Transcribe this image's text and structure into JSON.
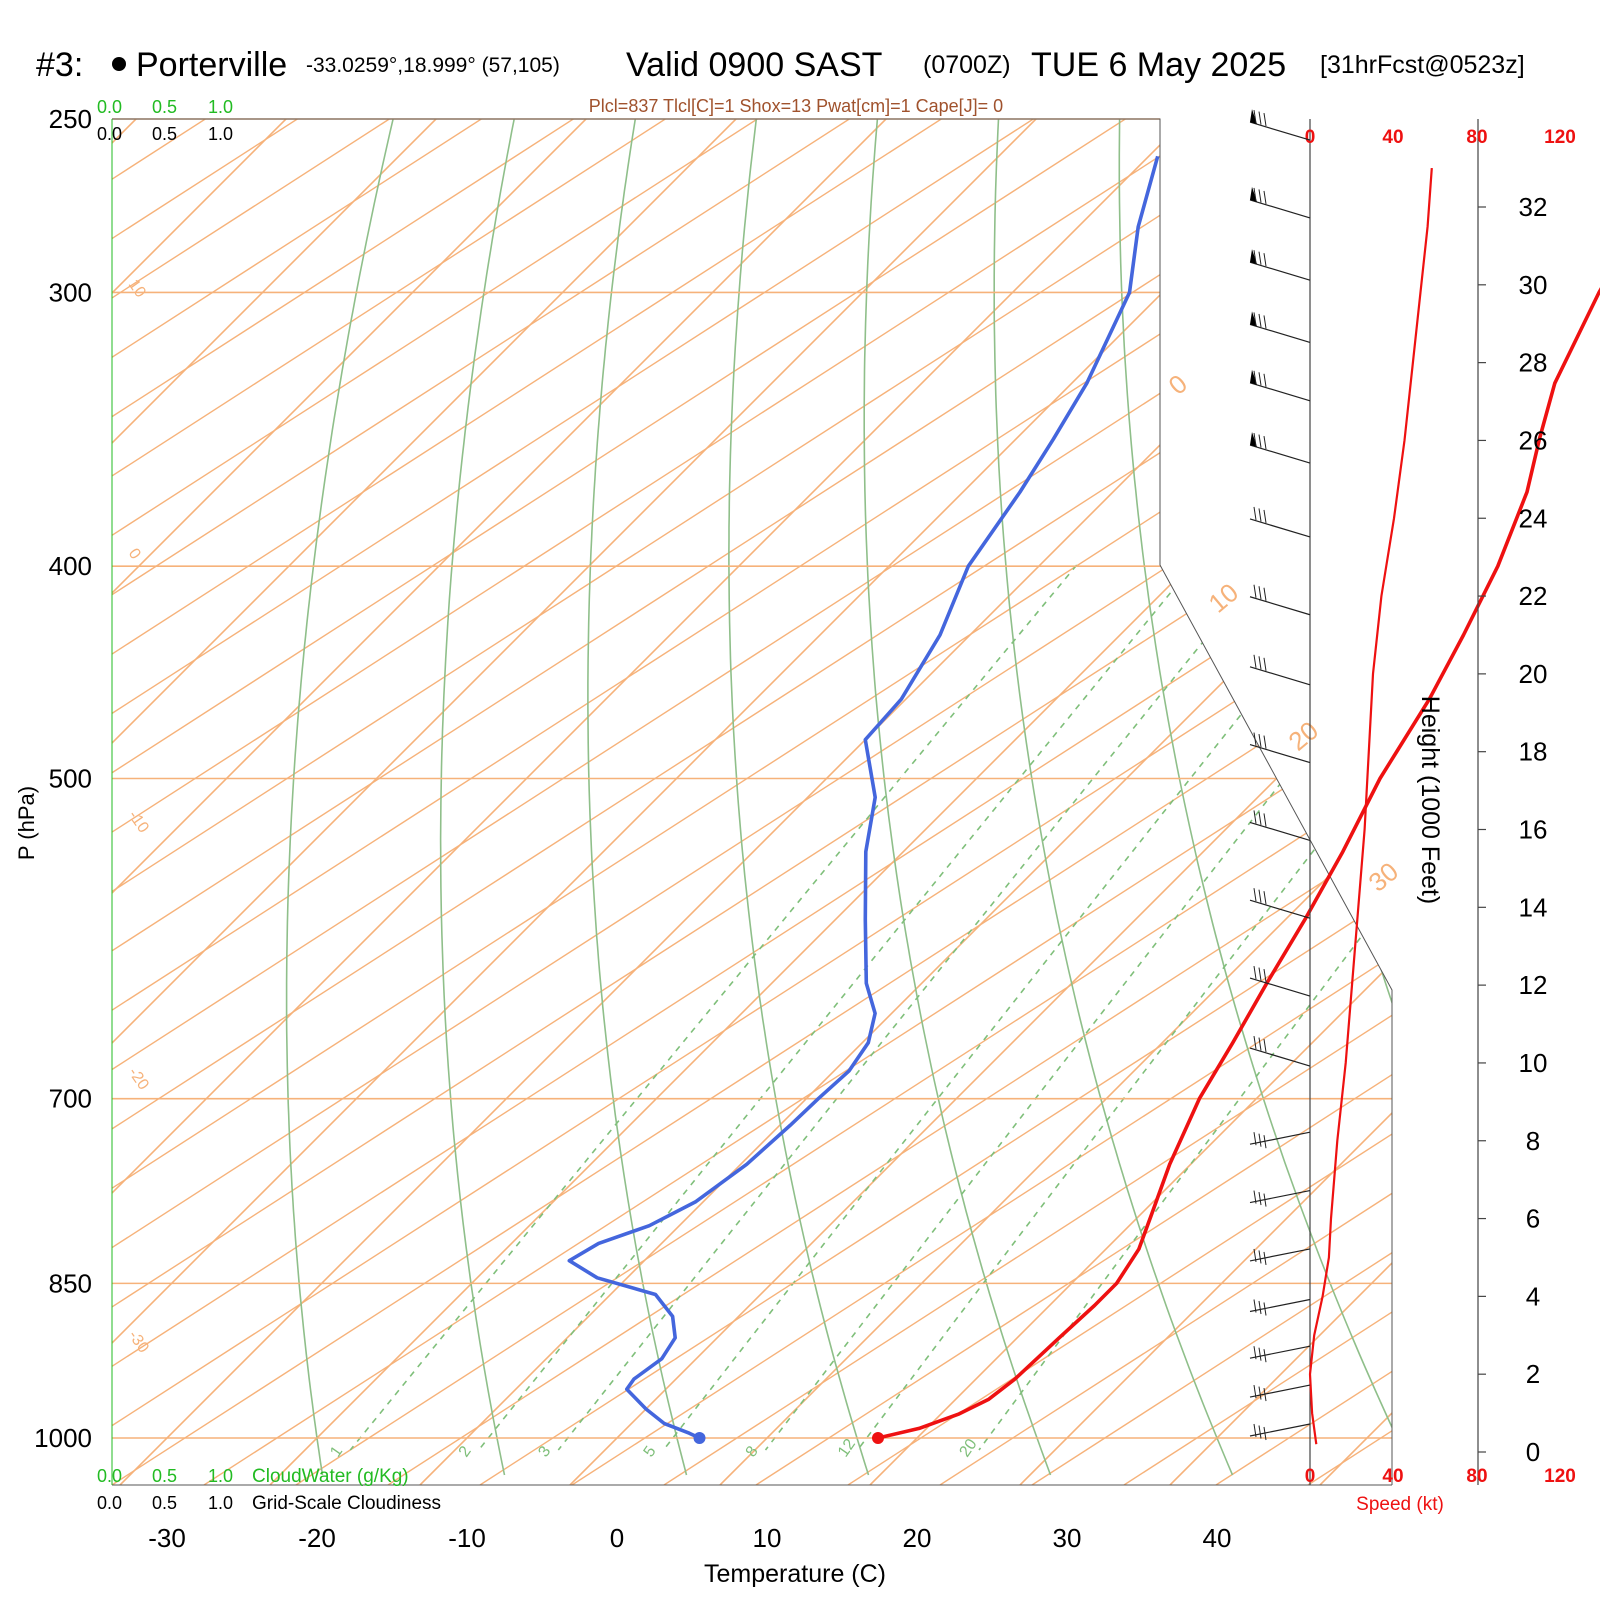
{
  "header": {
    "station_id": "#3:",
    "station_name": "Porterville",
    "coords": "-33.0259°,18.999° (57,105)",
    "valid_label": "Valid 0900 SAST",
    "zulu": "(0700Z)",
    "date": "TUE 6 May 2025",
    "fcst": "[31hrFcst@0523z]",
    "indices": "Plcl=837 Tlcl[C]=1 Shox=13 Pwat[cm]=1 Cape[J]= 0"
  },
  "colors": {
    "temperature": "#ee1111",
    "dewpoint": "#4466dd",
    "isotherm": "#f6b27a",
    "dry_adiabat": "#8fbf8a",
    "mixing_ratio": "#7fbf7a",
    "speed": "#ee1111",
    "cloudwater": "#22bb22"
  },
  "axes": {
    "x_label": "Temperature (C)",
    "y_label": "P (hPa)",
    "right_label": "Height (1000 Feet)",
    "speed_label": "Speed (kt)",
    "cloudwater_label": "CloudWater (g/Kg)",
    "cloudiness_label": "Grid-Scale Cloudiness",
    "cloudwater_ticks": [
      "0.0",
      "0.5",
      "1.0"
    ],
    "cloudiness_ticks": [
      "0.0",
      "0.5",
      "1.0"
    ]
  },
  "chart_data": {
    "type": "line",
    "title": "Skew-T log-P sounding",
    "xlabel": "Temperature (C)",
    "ylabel": "P (hPa)",
    "pressure_ticks": [
      250,
      300,
      400,
      500,
      700,
      850,
      1000
    ],
    "temperature_ticks": [
      -30,
      -20,
      -10,
      0,
      10,
      20,
      30,
      40
    ],
    "height_ticks": [
      0,
      2,
      4,
      6,
      8,
      10,
      12,
      14,
      16,
      18,
      20,
      22,
      24,
      26,
      28,
      30,
      32
    ],
    "speed_ticks": [
      "0",
      "40",
      "80",
      "120"
    ],
    "mixing_ratio_labels": [
      "1",
      "2",
      "3",
      "5",
      "8",
      "12",
      "20"
    ],
    "isotherm_labels": [
      "10",
      "0",
      "-10",
      "-20",
      "-30"
    ],
    "right_isotherm_labels": [
      "0",
      "10",
      "20",
      "30"
    ],
    "series": [
      {
        "name": "Temperature",
        "points": [
          [
            1000,
            17.4
          ],
          [
            990,
            19.5
          ],
          [
            975,
            21.2
          ],
          [
            960,
            22.2
          ],
          [
            940,
            22.6
          ],
          [
            920,
            22.7
          ],
          [
            900,
            22.8
          ],
          [
            870,
            23.0
          ],
          [
            850,
            23.0
          ],
          [
            820,
            22.2
          ],
          [
            790,
            20.7
          ],
          [
            750,
            18.6
          ],
          [
            700,
            16.2
          ],
          [
            660,
            14.7
          ],
          [
            620,
            13.0
          ],
          [
            580,
            11.3
          ],
          [
            540,
            9.3
          ],
          [
            500,
            6.9
          ],
          [
            460,
            4.9
          ],
          [
            430,
            2.9
          ],
          [
            400,
            0.6
          ],
          [
            370,
            -2.4
          ],
          [
            350,
            -5.1
          ],
          [
            330,
            -7.8
          ],
          [
            300,
            -10.9
          ],
          [
            280,
            -12.8
          ],
          [
            260,
            -15.0
          ]
        ]
      },
      {
        "name": "Dewpoint",
        "points": [
          [
            1000,
            5.5
          ],
          [
            995,
            4.5
          ],
          [
            985,
            2.2
          ],
          [
            970,
            0.0
          ],
          [
            950,
            -2.6
          ],
          [
            940,
            -2.8
          ],
          [
            920,
            -2.3
          ],
          [
            900,
            -2.8
          ],
          [
            880,
            -4.4
          ],
          [
            860,
            -7.0
          ],
          [
            845,
            -12.0
          ],
          [
            830,
            -15.0
          ],
          [
            815,
            -14.2
          ],
          [
            800,
            -12.0
          ],
          [
            780,
            -10.5
          ],
          [
            750,
            -9.6
          ],
          [
            720,
            -9.3
          ],
          [
            700,
            -9.2
          ],
          [
            680,
            -9.0
          ],
          [
            660,
            -9.6
          ],
          [
            640,
            -11.1
          ],
          [
            620,
            -13.7
          ],
          [
            580,
            -18.0
          ],
          [
            540,
            -22.5
          ],
          [
            510,
            -25.5
          ],
          [
            480,
            -30.0
          ],
          [
            460,
            -30.3
          ],
          [
            430,
            -32.0
          ],
          [
            400,
            -34.7
          ],
          [
            370,
            -36.2
          ],
          [
            350,
            -37.5
          ],
          [
            330,
            -39.0
          ],
          [
            300,
            -42.2
          ],
          [
            280,
            -46.0
          ],
          [
            260,
            -49.4
          ]
        ]
      }
    ],
    "wind_speed": {
      "name": "Speed (kt)",
      "points": [
        [
          0.2,
          3
        ],
        [
          1.0,
          1
        ],
        [
          2.0,
          0
        ],
        [
          3.0,
          2
        ],
        [
          4.0,
          6
        ],
        [
          5.0,
          9
        ],
        [
          6.0,
          10
        ],
        [
          8.0,
          13
        ],
        [
          10.0,
          17
        ],
        [
          12.0,
          20
        ],
        [
          14.0,
          23
        ],
        [
          16.0,
          26
        ],
        [
          18.0,
          28
        ],
        [
          20.0,
          30
        ],
        [
          22.0,
          34
        ],
        [
          24.0,
          40
        ],
        [
          26.0,
          45
        ],
        [
          28.0,
          49
        ],
        [
          30.0,
          53
        ],
        [
          31.5,
          56
        ],
        [
          33.0,
          58
        ]
      ]
    },
    "wind_barbs": {
      "heights_kft": [
        33,
        31,
        29.4,
        27.8,
        26.3,
        24.7,
        22.8,
        20.8,
        19,
        17,
        15,
        13,
        11,
        9.2,
        7.5,
        6,
        4.5,
        3.2,
        2,
        1,
        0
      ]
    }
  }
}
